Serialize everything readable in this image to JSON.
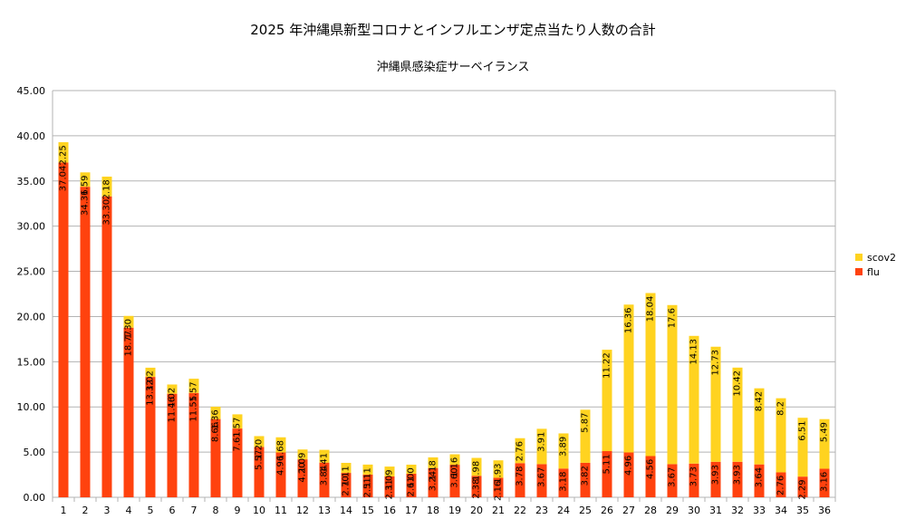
{
  "title": "2025 年沖縄県新型コロナとインフルエンザ定点当たり人数の合計",
  "subtitle": "沖縄県感染症サーベイランス",
  "colors": {
    "flu": "#ff420e",
    "scov2": "#ffd320",
    "grid": "#b3b3b3"
  },
  "chart_data": {
    "type": "bar",
    "stacked": true,
    "title": "2025 年沖縄県新型コロナとインフルエンザ定点当たり人数の合計",
    "subtitle": "沖縄県感染症サーベイランス",
    "xlabel": "",
    "ylabel": "",
    "ylim": [
      0,
      45
    ],
    "yticks": [
      "0.00",
      "5.00",
      "10.00",
      "15.00",
      "20.00",
      "25.00",
      "30.00",
      "35.00",
      "40.00",
      "45.00"
    ],
    "grid": true,
    "legend_position": "right",
    "categories": [
      "1",
      "2",
      "3",
      "4",
      "5",
      "6",
      "7",
      "8",
      "9",
      "10",
      "11",
      "12",
      "13",
      "14",
      "15",
      "16",
      "17",
      "18",
      "19",
      "20",
      "21",
      "22",
      "23",
      "24",
      "25",
      "26",
      "27",
      "28",
      "29",
      "30",
      "31",
      "32",
      "33",
      "34",
      "35",
      "36"
    ],
    "series": [
      {
        "name": "flu",
        "values": [
          37.04,
          34.36,
          33.3,
          18.77,
          13.32,
          11.46,
          11.55,
          8.66,
          7.61,
          5.57,
          4.96,
          4.2,
          3.84,
          2.7,
          2.51,
          2.31,
          2.61,
          3.24,
          3.6,
          2.38,
          2.16,
          3.78,
          3.67,
          3.18,
          3.82,
          5.11,
          4.96,
          4.56,
          3.67,
          3.73,
          3.93,
          3.93,
          3.64,
          2.76,
          2.29,
          3.16
        ],
        "labels": [
          "37.04",
          "34.36",
          "33.30",
          "18.77",
          "13.32",
          "11.46",
          "11.55",
          "8.66",
          "7.61",
          "5.57",
          "4.96",
          "4.20",
          "3.84",
          "2.70",
          "2.51",
          "2.31",
          "2.61",
          "3.24",
          "3.60",
          "2.38",
          "2.16",
          "3.78",
          "3.67",
          "3.18",
          "3.82",
          "5.11",
          "4.96",
          "4.56",
          "3.67",
          "3.73",
          "3.93",
          "3.93",
          "3.64",
          "2.76",
          "2.29",
          "3.16"
        ]
      },
      {
        "name": "scov2",
        "values": [
          2.25,
          1.59,
          2.18,
          1.3,
          1.02,
          1.02,
          1.57,
          1.36,
          1.57,
          1.2,
          1.68,
          1.09,
          1.41,
          1.11,
          1.11,
          1.09,
          1.0,
          1.18,
          1.16,
          1.98,
          1.93,
          2.76,
          3.91,
          3.89,
          5.87,
          11.22,
          16.36,
          18.04,
          17.6,
          14.13,
          12.73,
          10.42,
          8.42,
          8.2,
          6.51,
          5.49
        ],
        "labels": [
          "2.25",
          "1.59",
          "2.18",
          "1.30",
          "1.02",
          "1.02",
          "1.57",
          "1.36",
          "1.57",
          "1.20",
          "1.68",
          "1.09",
          "1.41",
          "1.11",
          "1.11",
          "1.09",
          "1.00",
          "1.18",
          "1.16",
          "1.98",
          "1.93",
          "2.76",
          "3.91",
          "3.89",
          "5.87",
          "11.22",
          "16.36",
          "18.04",
          "17.6",
          "14.13",
          "12.73",
          "10.42",
          "8.42",
          "8.2",
          "6.51",
          "5.49"
        ]
      }
    ]
  }
}
